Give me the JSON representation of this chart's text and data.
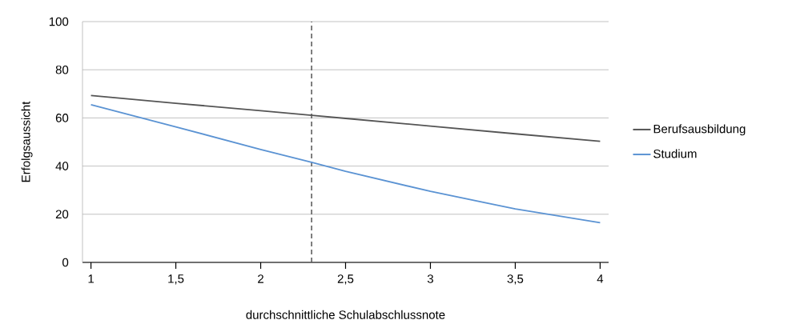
{
  "chart_data": {
    "type": "line",
    "xlabel": "durchschnittliche Schulabschlussnote",
    "ylabel": "Erfolgsaussicht",
    "x": [
      1,
      1.5,
      2,
      2.3,
      2.5,
      3,
      3.5,
      4
    ],
    "series": [
      {
        "name": "Berufsausbildung",
        "color": "#555555",
        "values": [
          69.3,
          66.1,
          63,
          61.1,
          59.8,
          56.6,
          53.4,
          50.3
        ]
      },
      {
        "name": "Studium",
        "color": "#5b93d3",
        "values": [
          65.5,
          56.3,
          46.9,
          41.6,
          37.8,
          29.5,
          22.2,
          16.5
        ]
      }
    ],
    "xlim": [
      0.95,
      4.05
    ],
    "ylim": [
      0,
      100
    ],
    "xticks": [
      1,
      {
        "value": 1.5,
        "label": "1,5"
      },
      2,
      {
        "value": 2.5,
        "label": "2,5"
      },
      3,
      {
        "value": 3.5,
        "label": "3,5"
      },
      4
    ],
    "yticks": [
      0,
      20,
      40,
      60,
      80,
      100
    ],
    "ref_lines": [
      {
        "axis": "x",
        "value": 2.3,
        "color": "#555555",
        "line_style": "dashed"
      }
    ],
    "grid": "y",
    "legend": "right",
    "marker": "none",
    "line_style": "solid"
  }
}
